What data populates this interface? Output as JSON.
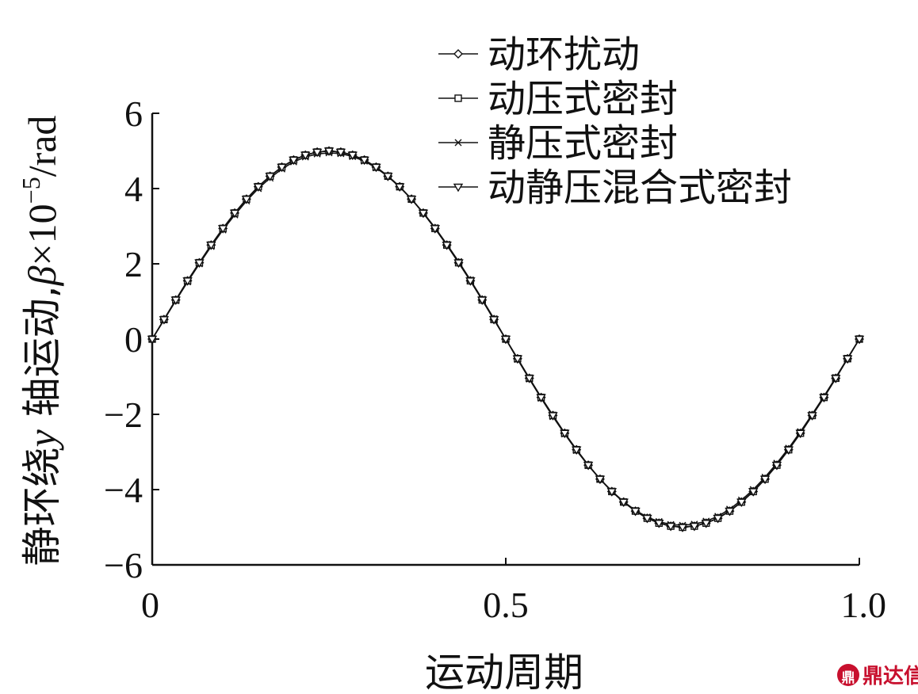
{
  "chart_data": {
    "type": "line",
    "xlabel": "运动周期",
    "ylabel_prefix": "静环绕",
    "ylabel_italic_y": "y",
    "ylabel_mid": " 轴运动,",
    "ylabel_beta": "β",
    "ylabel_times": "×10",
    "ylabel_exp": "−5",
    "ylabel_unit": "/rad",
    "xlim": [
      0,
      1.0
    ],
    "ylim": [
      -6,
      6
    ],
    "x_ticks": [
      0,
      0.5,
      1.0
    ],
    "x_tick_labels": [
      "0",
      "0.5",
      "1.0"
    ],
    "y_ticks": [
      -6,
      -4,
      -2,
      0,
      2,
      4,
      6
    ],
    "y_tick_labels": [
      "−6",
      "−4",
      "−2",
      "0",
      "2",
      "4",
      "6"
    ],
    "grid": false,
    "legend_position": "top-right",
    "x": [
      0,
      0.01667,
      0.03333,
      0.05,
      0.06667,
      0.08333,
      0.1,
      0.11667,
      0.13333,
      0.15,
      0.16667,
      0.18333,
      0.2,
      0.21667,
      0.23333,
      0.25,
      0.26667,
      0.28333,
      0.3,
      0.31667,
      0.33333,
      0.35,
      0.36667,
      0.38333,
      0.4,
      0.41667,
      0.43333,
      0.45,
      0.46667,
      0.48333,
      0.5,
      0.51667,
      0.53333,
      0.55,
      0.56667,
      0.58333,
      0.6,
      0.61667,
      0.63333,
      0.65,
      0.66667,
      0.68333,
      0.7,
      0.71667,
      0.73333,
      0.75,
      0.76667,
      0.78333,
      0.8,
      0.81667,
      0.83333,
      0.85,
      0.86667,
      0.88333,
      0.9,
      0.91667,
      0.93333,
      0.95,
      0.96667,
      0.98333,
      1.0
    ],
    "series": [
      {
        "name": "动环扰动",
        "marker": "diamond",
        "values": [
          0,
          0.52,
          1.04,
          1.55,
          2.03,
          2.5,
          2.94,
          3.35,
          3.72,
          4.05,
          4.33,
          4.57,
          4.76,
          4.89,
          4.97,
          5.0,
          4.97,
          4.89,
          4.76,
          4.57,
          4.33,
          4.05,
          3.72,
          3.35,
          2.94,
          2.5,
          2.03,
          1.55,
          1.04,
          0.52,
          0,
          -0.52,
          -1.04,
          -1.55,
          -2.03,
          -2.5,
          -2.94,
          -3.35,
          -3.72,
          -4.05,
          -4.33,
          -4.57,
          -4.76,
          -4.89,
          -4.97,
          -5.0,
          -4.97,
          -4.89,
          -4.76,
          -4.57,
          -4.33,
          -4.05,
          -3.72,
          -3.35,
          -2.94,
          -2.5,
          -2.03,
          -1.55,
          -1.04,
          -0.52,
          0
        ]
      },
      {
        "name": "动压式密封",
        "marker": "square",
        "values": [
          0,
          0.52,
          1.04,
          1.55,
          2.03,
          2.5,
          2.94,
          3.35,
          3.72,
          4.05,
          4.33,
          4.57,
          4.76,
          4.89,
          4.97,
          5.0,
          4.97,
          4.89,
          4.76,
          4.57,
          4.33,
          4.05,
          3.72,
          3.35,
          2.94,
          2.5,
          2.03,
          1.55,
          1.04,
          0.52,
          0,
          -0.52,
          -1.04,
          -1.55,
          -2.03,
          -2.5,
          -2.94,
          -3.35,
          -3.72,
          -4.05,
          -4.33,
          -4.57,
          -4.76,
          -4.89,
          -4.97,
          -5.0,
          -4.97,
          -4.89,
          -4.76,
          -4.57,
          -4.33,
          -4.05,
          -3.72,
          -3.35,
          -2.94,
          -2.5,
          -2.03,
          -1.55,
          -1.04,
          -0.52,
          0
        ]
      },
      {
        "name": "静压式密封",
        "marker": "x",
        "values": [
          0,
          0.51,
          1.02,
          1.52,
          2.0,
          2.46,
          2.9,
          3.3,
          3.67,
          4.0,
          4.28,
          4.52,
          4.71,
          4.84,
          4.92,
          4.95,
          4.93,
          4.85,
          4.73,
          4.55,
          4.32,
          4.04,
          3.72,
          3.36,
          2.96,
          2.52,
          2.06,
          1.57,
          1.06,
          0.54,
          0,
          -0.54,
          -1.06,
          -1.57,
          -2.06,
          -2.52,
          -2.96,
          -3.36,
          -3.72,
          -4.04,
          -4.32,
          -4.55,
          -4.73,
          -4.85,
          -4.93,
          -4.95,
          -4.92,
          -4.84,
          -4.71,
          -4.52,
          -4.28,
          -4.0,
          -3.67,
          -3.3,
          -2.9,
          -2.46,
          -2.0,
          -1.52,
          -1.02,
          -0.51,
          0
        ]
      },
      {
        "name": "动静压混合式密封",
        "marker": "triangle-down",
        "values": [
          0,
          0.52,
          1.04,
          1.55,
          2.03,
          2.5,
          2.94,
          3.35,
          3.72,
          4.05,
          4.33,
          4.57,
          4.76,
          4.89,
          4.97,
          5.0,
          4.97,
          4.89,
          4.76,
          4.57,
          4.33,
          4.05,
          3.72,
          3.35,
          2.94,
          2.5,
          2.03,
          1.55,
          1.04,
          0.52,
          0,
          -0.52,
          -1.04,
          -1.55,
          -2.03,
          -2.5,
          -2.94,
          -3.35,
          -3.72,
          -4.05,
          -4.33,
          -4.57,
          -4.76,
          -4.89,
          -4.97,
          -5.0,
          -4.97,
          -4.89,
          -4.76,
          -4.57,
          -4.33,
          -4.05,
          -3.72,
          -3.35,
          -2.94,
          -2.5,
          -2.03,
          -1.55,
          -1.04,
          -0.52,
          0
        ]
      }
    ]
  },
  "watermark": {
    "logo_text": "鼎",
    "text": "鼎达信",
    "color": "#c8102e"
  }
}
